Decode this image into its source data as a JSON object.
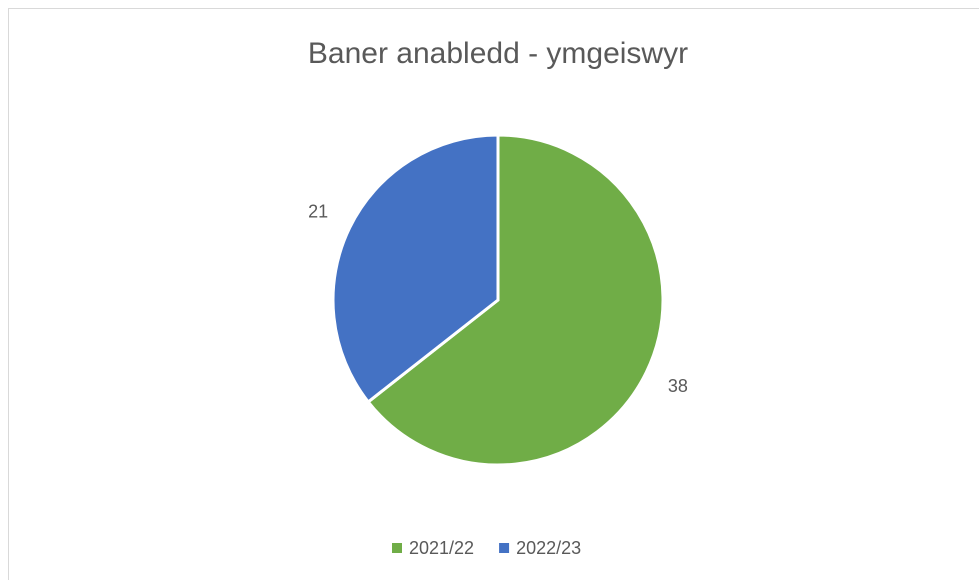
{
  "chart_data": {
    "type": "pie",
    "title": "Baner anabledd - ymgeiswyr",
    "categories": [
      "2021/22",
      "2022/23"
    ],
    "values": [
      38,
      21
    ],
    "colors": [
      "#70ad47",
      "#4472c4"
    ],
    "legend": "bottom"
  }
}
